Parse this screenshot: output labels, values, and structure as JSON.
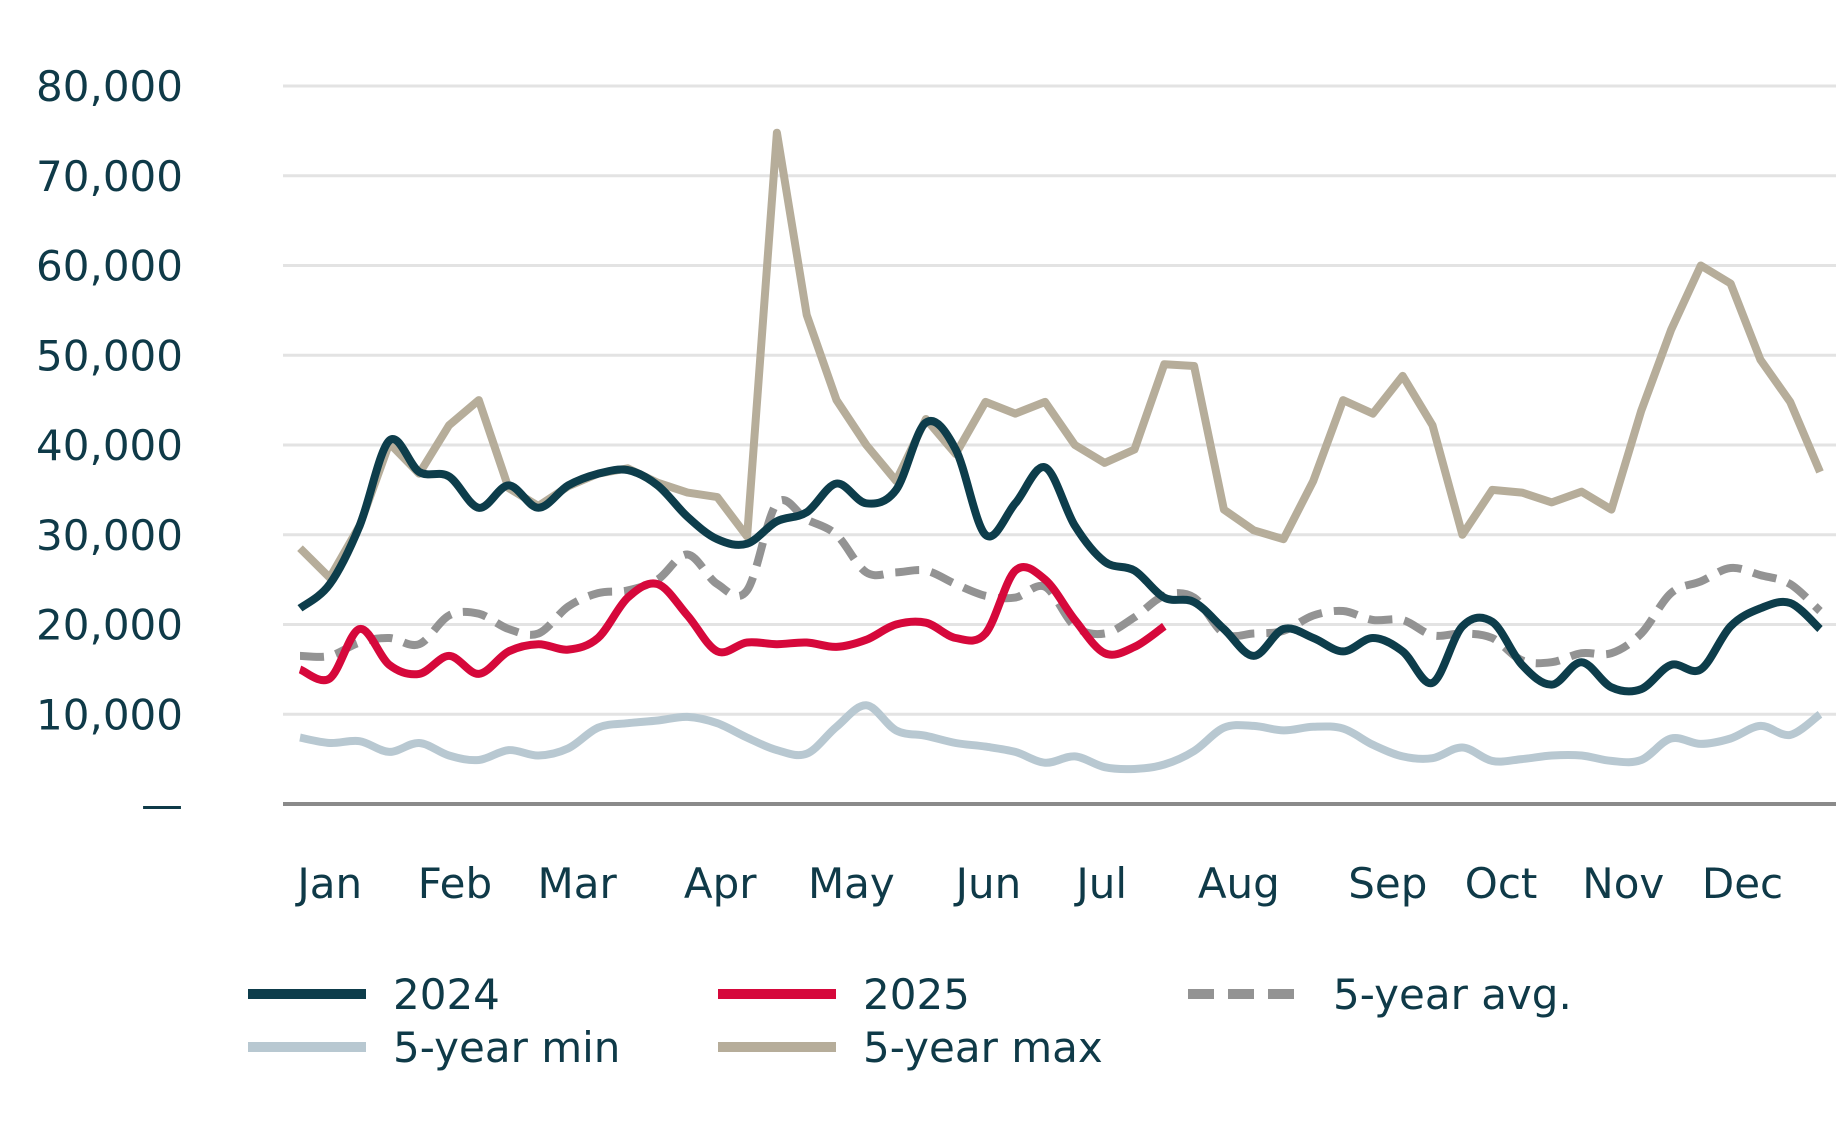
{
  "chart_data": {
    "type": "line",
    "title": "",
    "xlabel": "",
    "ylabel": "",
    "ylim": [
      0,
      80000
    ],
    "y_ticks": [
      {
        "value": 0,
        "label": "—"
      },
      {
        "value": 10000,
        "label": "10,000"
      },
      {
        "value": 20000,
        "label": "20,000"
      },
      {
        "value": 30000,
        "label": "30,000"
      },
      {
        "value": 40000,
        "label": "40,000"
      },
      {
        "value": 50000,
        "label": "50,000"
      },
      {
        "value": 60000,
        "label": "60,000"
      },
      {
        "value": 70000,
        "label": "70,000"
      },
      {
        "value": 80000,
        "label": "80,000"
      }
    ],
    "x_range": [
      1,
      52
    ],
    "x_unit": "week",
    "x_ticks": [
      {
        "week": 2.0,
        "label": "Jan"
      },
      {
        "week": 6.2,
        "label": "Feb"
      },
      {
        "week": 10.3,
        "label": "Mar"
      },
      {
        "week": 15.1,
        "label": "Apr"
      },
      {
        "week": 19.5,
        "label": "May"
      },
      {
        "week": 24.1,
        "label": "Jun"
      },
      {
        "week": 27.9,
        "label": "Jul"
      },
      {
        "week": 32.5,
        "label": "Aug"
      },
      {
        "week": 37.5,
        "label": "Sep"
      },
      {
        "week": 41.3,
        "label": "Oct"
      },
      {
        "week": 45.4,
        "label": "Nov"
      },
      {
        "week": 49.4,
        "label": "Dec"
      }
    ],
    "grid": true,
    "legend_position": "bottom",
    "series": [
      {
        "name": "5-year min",
        "color": "#b8c8d1",
        "style": "solid",
        "x": [
          1,
          2,
          3,
          4,
          5,
          6,
          7,
          8,
          9,
          10,
          11,
          12,
          13,
          14,
          15,
          16,
          17,
          18,
          19,
          20,
          21,
          22,
          23,
          24,
          25,
          26,
          27,
          28,
          29,
          30,
          31,
          32,
          33,
          34,
          35,
          36,
          37,
          38,
          39,
          40,
          41,
          42,
          43,
          44,
          45,
          46,
          47,
          48,
          49,
          50,
          51,
          52
        ],
        "values": [
          7400,
          6800,
          7000,
          5800,
          6800,
          5400,
          4900,
          6000,
          5400,
          6200,
          8500,
          9000,
          9300,
          9700,
          9000,
          7400,
          6000,
          5600,
          8600,
          11000,
          8200,
          7600,
          6800,
          6400,
          5800,
          4600,
          5300,
          4100,
          3900,
          4400,
          5900,
          8500,
          8700,
          8200,
          8600,
          8400,
          6600,
          5300,
          5100,
          6300,
          4800,
          5000,
          5400,
          5400,
          4800,
          4900,
          7300,
          6700,
          7300,
          8700,
          7700,
          10000
        ]
      },
      {
        "name": "5-year max",
        "color": "#b6ad9a",
        "style": "solid",
        "x": [
          1,
          2,
          3,
          4,
          5,
          6,
          7,
          8,
          9,
          10,
          11,
          12,
          13,
          14,
          15,
          16,
          17,
          18,
          19,
          20,
          21,
          22,
          23,
          24,
          25,
          26,
          27,
          28,
          29,
          30,
          31,
          32,
          33,
          34,
          35,
          36,
          37,
          38,
          39,
          40,
          41,
          42,
          43,
          44,
          45,
          46,
          47,
          48,
          49,
          50,
          51,
          52
        ],
        "values": [
          28500,
          25200,
          31000,
          40200,
          36800,
          42200,
          45000,
          35200,
          33200,
          35400,
          36800,
          37400,
          35800,
          34700,
          34200,
          29800,
          74800,
          54500,
          45000,
          40000,
          36000,
          42900,
          39000,
          44800,
          43500,
          44800,
          40000,
          38000,
          39500,
          49000,
          48800,
          32800,
          30500,
          29500,
          36000,
          45000,
          43500,
          47700,
          42200,
          30000,
          35000,
          34700,
          33600,
          34800,
          32800,
          43800,
          52800,
          60000,
          58000,
          49500,
          44800,
          37000
        ]
      },
      {
        "name": "5-year avg.",
        "color": "#939393",
        "style": "dashed",
        "x": [
          1,
          2,
          3,
          4,
          5,
          6,
          7,
          8,
          9,
          10,
          11,
          12,
          13,
          14,
          15,
          16,
          17,
          18,
          19,
          20,
          21,
          22,
          23,
          24,
          25,
          26,
          27,
          28,
          29,
          30,
          31,
          32,
          33,
          34,
          35,
          36,
          37,
          38,
          39,
          40,
          41,
          42,
          43,
          44,
          45,
          46,
          47,
          48,
          49,
          50,
          51,
          52
        ],
        "values": [
          16500,
          16500,
          18000,
          18500,
          17800,
          21000,
          21200,
          19500,
          19000,
          22000,
          23500,
          23800,
          25000,
          27800,
          24500,
          23800,
          33500,
          31700,
          30000,
          25800,
          25800,
          26000,
          24500,
          23200,
          23000,
          24200,
          19800,
          19000,
          20800,
          23200,
          23000,
          19000,
          19000,
          19300,
          21000,
          21500,
          20500,
          20500,
          18800,
          19000,
          18500,
          16000,
          15800,
          16800,
          16800,
          19000,
          23500,
          24800,
          26300,
          25500,
          24500,
          21500
        ]
      },
      {
        "name": "2024",
        "color": "#0d3d4b",
        "style": "solid",
        "x": [
          1,
          2,
          3,
          4,
          5,
          6,
          7,
          8,
          9,
          10,
          11,
          12,
          13,
          14,
          15,
          16,
          17,
          18,
          19,
          20,
          21,
          22,
          23,
          24,
          25,
          26,
          27,
          28,
          29,
          30,
          31,
          32,
          33,
          34,
          35,
          36,
          37,
          38,
          39,
          40,
          41,
          42,
          43,
          44,
          45,
          46,
          47,
          48,
          49,
          50,
          51,
          52
        ],
        "values": [
          21800,
          24500,
          31000,
          40500,
          37000,
          36500,
          33000,
          35500,
          33000,
          35500,
          36800,
          37200,
          35500,
          32000,
          29500,
          29000,
          31500,
          32500,
          35700,
          33500,
          35000,
          42500,
          39500,
          30000,
          33500,
          37500,
          31000,
          27000,
          26000,
          23000,
          22500,
          19500,
          16500,
          19500,
          18500,
          17000,
          18500,
          17000,
          13500,
          19800,
          20300,
          15500,
          13300,
          15800,
          13000,
          12800,
          15500,
          15000,
          19800,
          21800,
          22400,
          19500
        ]
      },
      {
        "name": "2025",
        "color": "#d6083b",
        "style": "solid",
        "x": [
          1,
          2,
          3,
          4,
          5,
          6,
          7,
          8,
          9,
          10,
          11,
          12,
          13,
          14,
          15,
          16,
          17,
          18,
          19,
          20,
          21,
          22,
          23,
          24,
          25,
          26,
          27,
          28,
          29,
          30
        ],
        "values": [
          15000,
          14000,
          19500,
          15500,
          14500,
          16500,
          14500,
          17000,
          17800,
          17200,
          18500,
          23000,
          24500,
          21000,
          17000,
          18000,
          17800,
          18000,
          17500,
          18300,
          20000,
          20200,
          18500,
          19000,
          26000,
          25000,
          20500,
          16800,
          17500,
          19800
        ]
      }
    ],
    "legend": [
      {
        "name": "2024",
        "color": "#0d3d4b",
        "style": "solid"
      },
      {
        "name": "2025",
        "color": "#d6083b",
        "style": "solid"
      },
      {
        "name": "5-year avg.",
        "color": "#939393",
        "style": "dashed"
      },
      {
        "name": "5-year min",
        "color": "#b8c8d1",
        "style": "solid"
      },
      {
        "name": "5-year max",
        "color": "#b6ad9a",
        "style": "solid"
      }
    ]
  }
}
